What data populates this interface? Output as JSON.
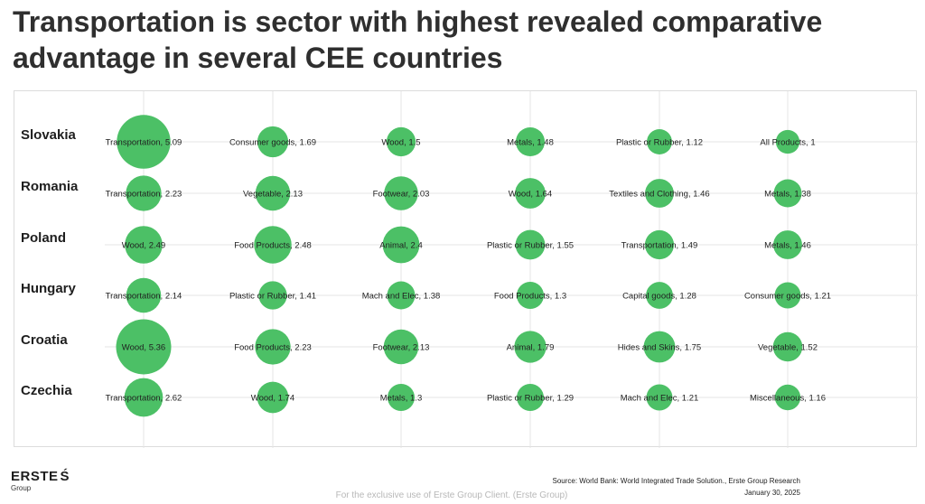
{
  "title": "Transportation is sector with highest revealed comparative advantage in several CEE countries",
  "footer": {
    "logo_text": "ERSTE",
    "logo_mark": "Ś",
    "logo_sub": "Group",
    "source": "Source: World Bank: World Integrated Trade Solution., Erste Group Research",
    "date": "January 30, 2025",
    "watermark": "For the exclusive use of Erste Group Client. (Erste Group)"
  },
  "colors": {
    "bubble": "#4cc066",
    "grid": "#e6e6e6",
    "text": "#1f1f1f"
  },
  "chart_data": {
    "type": "scatter",
    "subtype": "bubble",
    "title": "",
    "xlabel": "",
    "ylabel": "",
    "grid": true,
    "legend": "none",
    "countries": [
      "Slovakia",
      "Romania",
      "Poland",
      "Hungary",
      "Croatia",
      "Czechia"
    ],
    "series": [
      {
        "country": "Slovakia",
        "points": [
          {
            "label": "Transportation",
            "value": 5.09
          },
          {
            "label": "Consumer goods",
            "value": 1.69
          },
          {
            "label": "Wood",
            "value": 1.5
          },
          {
            "label": "Metals",
            "value": 1.48
          },
          {
            "label": "Plastic or Rubber",
            "value": 1.12
          },
          {
            "label": "All Products",
            "value": 1
          }
        ]
      },
      {
        "country": "Romania",
        "points": [
          {
            "label": "Transportation",
            "value": 2.23
          },
          {
            "label": "Vegetable",
            "value": 2.13
          },
          {
            "label": "Footwear",
            "value": 2.03
          },
          {
            "label": "Wood",
            "value": 1.64
          },
          {
            "label": "Textiles and Clothing",
            "value": 1.46
          },
          {
            "label": "Metals",
            "value": 1.38
          }
        ]
      },
      {
        "country": "Poland",
        "points": [
          {
            "label": "Wood",
            "value": 2.49
          },
          {
            "label": "Food Products",
            "value": 2.48
          },
          {
            "label": "Animal",
            "value": 2.4
          },
          {
            "label": "Plastic or Rubber",
            "value": 1.55
          },
          {
            "label": "Transportation",
            "value": 1.49
          },
          {
            "label": "Metals",
            "value": 1.46
          }
        ]
      },
      {
        "country": "Hungary",
        "points": [
          {
            "label": "Transportation",
            "value": 2.14
          },
          {
            "label": "Plastic or Rubber",
            "value": 1.41
          },
          {
            "label": "Mach and Elec",
            "value": 1.38
          },
          {
            "label": "Food Products",
            "value": 1.3
          },
          {
            "label": "Capital goods",
            "value": 1.28
          },
          {
            "label": "Consumer goods",
            "value": 1.21
          }
        ]
      },
      {
        "country": "Croatia",
        "points": [
          {
            "label": "Wood",
            "value": 5.36
          },
          {
            "label": "Food Products",
            "value": 2.23
          },
          {
            "label": "Footwear",
            "value": 2.13
          },
          {
            "label": "Animal",
            "value": 1.79
          },
          {
            "label": "Hides and Skins",
            "value": 1.75
          },
          {
            "label": "Vegetable",
            "value": 1.52
          }
        ]
      },
      {
        "country": "Czechia",
        "points": [
          {
            "label": "Transportation",
            "value": 2.62
          },
          {
            "label": "Wood",
            "value": 1.74
          },
          {
            "label": "Metals",
            "value": 1.3
          },
          {
            "label": "Plastic or Rubber",
            "value": 1.29
          },
          {
            "label": "Mach and Elec",
            "value": 1.21
          },
          {
            "label": "Miscellaneous",
            "value": 1.16
          }
        ]
      }
    ]
  }
}
